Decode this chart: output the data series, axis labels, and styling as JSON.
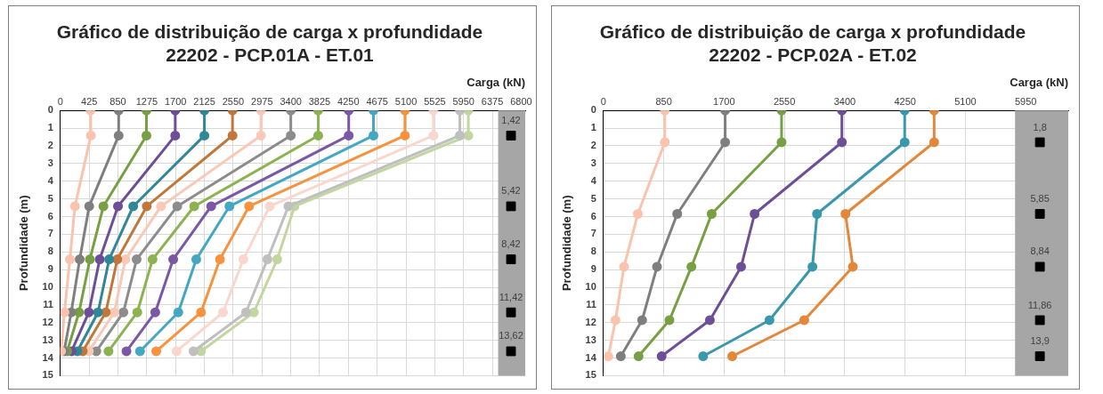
{
  "chart_data": [
    {
      "type": "line",
      "title": "Gráfico de distribuição de carga x profundidade\n22202 - PCP.01A - ET.01",
      "xlabel": "Carga (kN)",
      "ylabel": "Profundidade (m)",
      "xlim": [
        0,
        6860
      ],
      "xticks": [
        0,
        425,
        850,
        1275,
        1700,
        2125,
        2550,
        2975,
        3400,
        3825,
        4250,
        4675,
        5100,
        5525,
        5950,
        6375,
        6800
      ],
      "ylim": [
        15,
        0
      ],
      "yticks": [
        0,
        1,
        2,
        3,
        4,
        5,
        6,
        7,
        8,
        9,
        10,
        11,
        12,
        13,
        14,
        15
      ],
      "grid": true,
      "marker": "circle",
      "line_style": "solid",
      "bands": [
        {
          "axis": "x",
          "from": 6460,
          "to": 6860,
          "color": "#a6a6a6"
        }
      ],
      "series": [
        {
          "color": "#f9c3ad",
          "x": [
            445,
            450,
            215,
            140,
            60,
            10
          ],
          "values": [
            0,
            1.42,
            5.42,
            8.42,
            11.42,
            13.62
          ]
        },
        {
          "color": "#7f7f7f",
          "x": [
            860,
            860,
            425,
            285,
            160,
            55
          ],
          "values": [
            0,
            1.42,
            5.42,
            8.42,
            11.42,
            13.62
          ]
        },
        {
          "color": "#77a043",
          "x": [
            1270,
            1270,
            635,
            435,
            275,
            100
          ],
          "values": [
            0,
            1.42,
            5.42,
            8.42,
            11.42,
            13.62
          ]
        },
        {
          "color": "#6d4f98",
          "x": [
            1695,
            1695,
            850,
            580,
            420,
            165
          ],
          "values": [
            0,
            1.42,
            5.42,
            8.42,
            11.42,
            13.62
          ]
        },
        {
          "color": "#2f8797",
          "x": [
            2125,
            2125,
            1075,
            720,
            555,
            250
          ],
          "values": [
            0,
            1.42,
            5.42,
            8.42,
            11.42,
            13.62
          ]
        },
        {
          "color": "#c2773a",
          "x": [
            2540,
            2540,
            1275,
            840,
            670,
            330
          ],
          "values": [
            0,
            1.42,
            5.42,
            8.42,
            11.42,
            13.62
          ]
        },
        {
          "color": "#f9c8b6",
          "x": [
            2960,
            2960,
            1485,
            960,
            795,
            420
          ],
          "values": [
            0,
            1.42,
            5.42,
            8.42,
            11.42,
            13.62
          ]
        },
        {
          "color": "#8c8c8c",
          "x": [
            3400,
            3400,
            1725,
            1125,
            930,
            530
          ],
          "values": [
            0,
            1.42,
            5.42,
            8.42,
            11.42,
            13.62
          ]
        },
        {
          "color": "#8cb34f",
          "x": [
            3805,
            3805,
            1975,
            1360,
            1135,
            710
          ],
          "values": [
            0,
            1.42,
            5.42,
            8.42,
            11.42,
            13.62
          ]
        },
        {
          "color": "#7a58a6",
          "x": [
            4255,
            4255,
            2225,
            1665,
            1400,
            975
          ],
          "values": [
            0,
            1.42,
            5.42,
            8.42,
            11.42,
            13.62
          ]
        },
        {
          "color": "#45a8c2",
          "x": [
            4620,
            4620,
            2495,
            2005,
            1740,
            1175
          ],
          "values": [
            0,
            1.42,
            5.42,
            8.42,
            11.42,
            13.62
          ]
        },
        {
          "color": "#f7923e",
          "x": [
            5085,
            5085,
            2785,
            2355,
            2075,
            1415
          ],
          "values": [
            0,
            1.42,
            5.42,
            8.42,
            11.42,
            13.62
          ]
        },
        {
          "color": "#fad7cc",
          "x": [
            5505,
            5505,
            3090,
            2700,
            2400,
            1715
          ],
          "values": [
            0,
            1.42,
            5.42,
            8.42,
            11.42,
            13.62
          ]
        },
        {
          "color": "#bfbfbf",
          "x": [
            5895,
            5895,
            3365,
            3055,
            2740,
            1965
          ],
          "values": [
            0,
            1.42,
            5.42,
            8.42,
            11.42,
            13.62
          ]
        },
        {
          "color": "#c3d69f",
          "x": [
            6020,
            6020,
            3455,
            3200,
            2855,
            2075
          ],
          "values": [
            0,
            1.42,
            5.42,
            8.42,
            11.42,
            13.62
          ]
        },
        {
          "type": "scatter",
          "marker": "square",
          "color": "#000000",
          "x": [
            6650,
            6650,
            6650,
            6650,
            6650
          ],
          "values": [
            1.42,
            5.42,
            8.42,
            11.42,
            13.62
          ],
          "value_labels": [
            "1,42",
            "5,42",
            "8,42",
            "11,42",
            "13,62"
          ]
        }
      ]
    },
    {
      "type": "line",
      "title": "Gráfico de distribuição de carga x profundidade\n22202 - PCP.02A - ET.02",
      "xlabel": "Carga (kN)",
      "ylabel": "Profundidade (m)",
      "xlim": [
        0,
        6550
      ],
      "xticks": [
        0,
        850,
        1700,
        2550,
        3400,
        4250,
        5100,
        5950
      ],
      "ylim": [
        15,
        0
      ],
      "yticks": [
        0,
        1,
        2,
        3,
        4,
        5,
        6,
        7,
        8,
        9,
        10,
        11,
        12,
        13,
        14,
        15
      ],
      "grid": true,
      "marker": "circle",
      "line_style": "solid",
      "bands": [
        {
          "axis": "x",
          "from": 5800,
          "to": 6550,
          "color": "#a6a6a6"
        }
      ],
      "series": [
        {
          "color": "#f9c3ad",
          "x": [
            865,
            865,
            485,
            290,
            170,
            70
          ],
          "values": [
            0,
            1.8,
            5.85,
            8.84,
            11.86,
            13.9
          ]
        },
        {
          "color": "#7f7f7f",
          "x": [
            1715,
            1715,
            1040,
            755,
            545,
            245
          ],
          "values": [
            0,
            1.8,
            5.85,
            8.84,
            11.86,
            13.9
          ]
        },
        {
          "color": "#77a043",
          "x": [
            2510,
            2510,
            1525,
            1240,
            930,
            495
          ],
          "values": [
            0,
            1.8,
            5.85,
            8.84,
            11.86,
            13.9
          ]
        },
        {
          "color": "#6d4f98",
          "x": [
            3360,
            3360,
            2130,
            1940,
            1500,
            820
          ],
          "values": [
            0,
            1.8,
            5.85,
            8.84,
            11.86,
            13.9
          ]
        },
        {
          "color": "#3a98ad",
          "x": [
            4245,
            4245,
            3010,
            2945,
            2340,
            1405
          ],
          "values": [
            0,
            1.8,
            5.85,
            8.84,
            11.86,
            13.9
          ]
        },
        {
          "color": "#e3873a",
          "x": [
            4660,
            4660,
            3410,
            3515,
            2830,
            1815
          ],
          "values": [
            0,
            1.8,
            5.85,
            8.84,
            11.86,
            13.9
          ]
        },
        {
          "type": "scatter",
          "marker": "square",
          "color": "#000000",
          "x": [
            6150,
            6150,
            6150,
            6150,
            6150
          ],
          "values": [
            1.8,
            5.85,
            8.84,
            11.86,
            13.9
          ],
          "value_labels": [
            "1,8",
            "5,85",
            "8,84",
            "11,86",
            "13,9"
          ]
        }
      ]
    }
  ]
}
